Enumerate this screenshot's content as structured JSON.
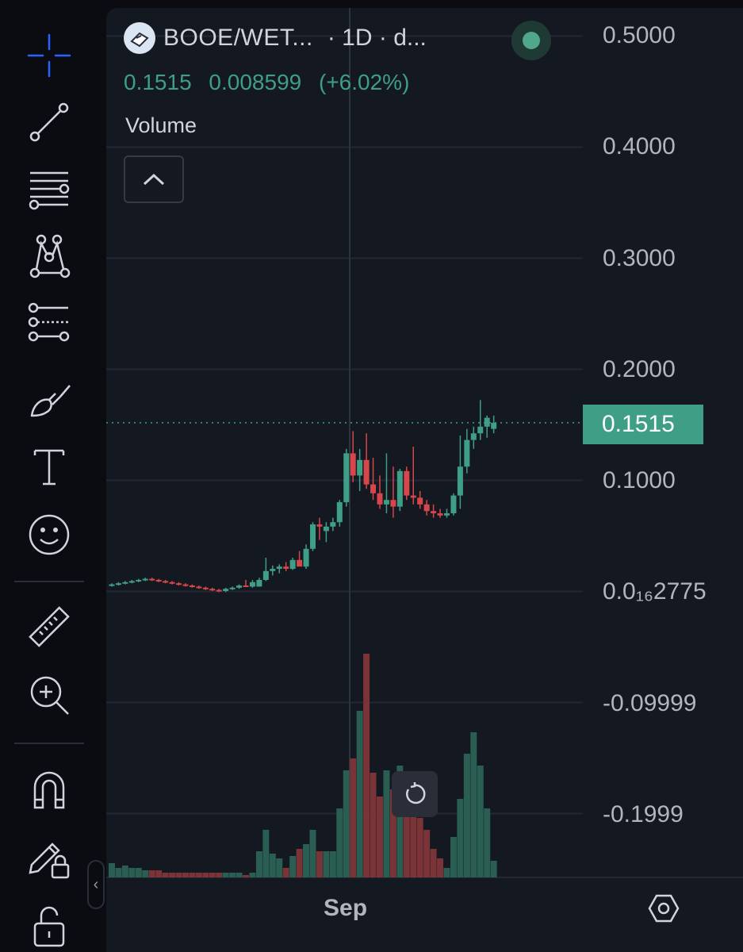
{
  "symbol": {
    "title": "BOOE/WET...",
    "interval": "· 1D · d...",
    "logo_icon": "booe-token-icon",
    "status": "live-green-dot"
  },
  "ohlc": {
    "price": "0.1515",
    "change": "0.008599",
    "change_pct": "(+6.02%)"
  },
  "indicators": {
    "volume_label": "Volume",
    "collapse_icon": "chevron-up-icon"
  },
  "price_axis": {
    "labels": [
      "0.5000",
      "0.4000",
      "0.3000",
      "0.2000",
      "0.1000",
      "0.0₁₆2775",
      "-0.09999",
      "-0.1999"
    ],
    "current_price_tag": "0.1515"
  },
  "time_axis": {
    "labels": [
      "Sep"
    ]
  },
  "toolbar": {
    "tools": [
      "crosshair-icon",
      "trend-line-icon",
      "horizontal-lines-icon",
      "pattern-icon",
      "prediction-icon",
      "brush-icon",
      "text-icon",
      "emoji-icon",
      "ruler-icon",
      "zoom-in-icon",
      "magnet-icon",
      "lock-drawing-icon",
      "unlock-icon"
    ]
  },
  "colors": {
    "up": "#3f9e86",
    "down": "#d6464a",
    "volume_up": "#2a5e52",
    "volume_down": "#7a3336",
    "background": "#141821",
    "grid": "#232733"
  },
  "chart_data": {
    "type": "candlestick",
    "title": "",
    "ylim": [
      -0.25,
      0.52
    ],
    "current_price": 0.1515,
    "x_tick_labels": [
      "Sep"
    ],
    "candles": [
      {
        "o": 0.005,
        "h": 0.007,
        "l": 0.004,
        "c": 0.006,
        "v": 0.06
      },
      {
        "o": 0.006,
        "h": 0.008,
        "l": 0.005,
        "c": 0.007,
        "v": 0.04
      },
      {
        "o": 0.007,
        "h": 0.009,
        "l": 0.006,
        "c": 0.008,
        "v": 0.05
      },
      {
        "o": 0.008,
        "h": 0.01,
        "l": 0.007,
        "c": 0.009,
        "v": 0.04
      },
      {
        "o": 0.009,
        "h": 0.011,
        "l": 0.008,
        "c": 0.01,
        "v": 0.04
      },
      {
        "o": 0.01,
        "h": 0.012,
        "l": 0.009,
        "c": 0.011,
        "v": 0.03
      },
      {
        "o": 0.011,
        "h": 0.012,
        "l": 0.009,
        "c": 0.01,
        "v": 0.03
      },
      {
        "o": 0.01,
        "h": 0.011,
        "l": 0.008,
        "c": 0.009,
        "v": 0.03
      },
      {
        "o": 0.009,
        "h": 0.01,
        "l": 0.007,
        "c": 0.008,
        "v": 0.02
      },
      {
        "o": 0.008,
        "h": 0.009,
        "l": 0.006,
        "c": 0.007,
        "v": 0.02
      },
      {
        "o": 0.007,
        "h": 0.008,
        "l": 0.005,
        "c": 0.006,
        "v": 0.02
      },
      {
        "o": 0.006,
        "h": 0.007,
        "l": 0.004,
        "c": 0.005,
        "v": 0.02
      },
      {
        "o": 0.005,
        "h": 0.006,
        "l": 0.003,
        "c": 0.004,
        "v": 0.02
      },
      {
        "o": 0.004,
        "h": 0.005,
        "l": 0.002,
        "c": 0.003,
        "v": 0.02
      },
      {
        "o": 0.003,
        "h": 0.004,
        "l": 0.001,
        "c": 0.002,
        "v": 0.02
      },
      {
        "o": 0.002,
        "h": 0.003,
        "l": 0.0,
        "c": 0.001,
        "v": 0.02
      },
      {
        "o": 0.001,
        "h": 0.002,
        "l": -0.001,
        "c": 0.0,
        "v": 0.02
      },
      {
        "o": 0.0,
        "h": 0.003,
        "l": -0.001,
        "c": 0.002,
        "v": 0.02
      },
      {
        "o": 0.002,
        "h": 0.004,
        "l": 0.001,
        "c": 0.003,
        "v": 0.02
      },
      {
        "o": 0.003,
        "h": 0.006,
        "l": 0.002,
        "c": 0.005,
        "v": 0.02
      },
      {
        "o": 0.005,
        "h": 0.01,
        "l": 0.004,
        "c": 0.004,
        "v": 0.01
      },
      {
        "o": 0.004,
        "h": 0.01,
        "l": 0.003,
        "c": 0.008,
        "v": 0.02
      },
      {
        "o": 0.004,
        "h": 0.012,
        "l": 0.004,
        "c": 0.01,
        "v": 0.11
      },
      {
        "o": 0.01,
        "h": 0.03,
        "l": 0.009,
        "c": 0.018,
        "v": 0.2
      },
      {
        "o": 0.018,
        "h": 0.023,
        "l": 0.014,
        "c": 0.02,
        "v": 0.1
      },
      {
        "o": 0.02,
        "h": 0.024,
        "l": 0.016,
        "c": 0.022,
        "v": 0.08
      },
      {
        "o": 0.022,
        "h": 0.026,
        "l": 0.018,
        "c": 0.02,
        "v": 0.04
      },
      {
        "o": 0.02,
        "h": 0.03,
        "l": 0.019,
        "c": 0.028,
        "v": 0.09
      },
      {
        "o": 0.028,
        "h": 0.036,
        "l": 0.024,
        "c": 0.022,
        "v": 0.12
      },
      {
        "o": 0.022,
        "h": 0.042,
        "l": 0.02,
        "c": 0.038,
        "v": 0.14
      },
      {
        "o": 0.038,
        "h": 0.062,
        "l": 0.036,
        "c": 0.06,
        "v": 0.2
      },
      {
        "o": 0.06,
        "h": 0.066,
        "l": 0.046,
        "c": 0.058,
        "v": 0.11
      },
      {
        "o": 0.054,
        "h": 0.062,
        "l": 0.044,
        "c": 0.058,
        "v": 0.11
      },
      {
        "o": 0.058,
        "h": 0.066,
        "l": 0.054,
        "c": 0.062,
        "v": 0.11
      },
      {
        "o": 0.062,
        "h": 0.082,
        "l": 0.058,
        "c": 0.08,
        "v": 0.29
      },
      {
        "o": 0.08,
        "h": 0.128,
        "l": 0.076,
        "c": 0.124,
        "v": 0.45
      },
      {
        "o": 0.124,
        "h": 0.144,
        "l": 0.098,
        "c": 0.104,
        "v": 0.5
      },
      {
        "o": 0.104,
        "h": 0.128,
        "l": 0.09,
        "c": 0.118,
        "v": 0.7
      },
      {
        "o": 0.118,
        "h": 0.142,
        "l": 0.092,
        "c": 0.096,
        "v": 0.94
      },
      {
        "o": 0.096,
        "h": 0.12,
        "l": 0.082,
        "c": 0.088,
        "v": 0.44
      },
      {
        "o": 0.088,
        "h": 0.104,
        "l": 0.074,
        "c": 0.078,
        "v": 0.34
      },
      {
        "o": 0.078,
        "h": 0.124,
        "l": 0.07,
        "c": 0.082,
        "v": 0.45
      },
      {
        "o": 0.082,
        "h": 0.112,
        "l": 0.066,
        "c": 0.076,
        "v": 0.37
      },
      {
        "o": 0.076,
        "h": 0.11,
        "l": 0.072,
        "c": 0.108,
        "v": 0.47
      },
      {
        "o": 0.108,
        "h": 0.112,
        "l": 0.082,
        "c": 0.086,
        "v": 0.37
      },
      {
        "o": 0.086,
        "h": 0.13,
        "l": 0.078,
        "c": 0.084,
        "v": 0.31
      },
      {
        "o": 0.084,
        "h": 0.09,
        "l": 0.074,
        "c": 0.078,
        "v": 0.25
      },
      {
        "o": 0.078,
        "h": 0.082,
        "l": 0.068,
        "c": 0.072,
        "v": 0.2
      },
      {
        "o": 0.072,
        "h": 0.078,
        "l": 0.066,
        "c": 0.07,
        "v": 0.12
      },
      {
        "o": 0.07,
        "h": 0.074,
        "l": 0.066,
        "c": 0.068,
        "v": 0.08
      },
      {
        "o": 0.068,
        "h": 0.074,
        "l": 0.066,
        "c": 0.07,
        "v": 0.04
      },
      {
        "o": 0.07,
        "h": 0.088,
        "l": 0.068,
        "c": 0.086,
        "v": 0.17
      },
      {
        "o": 0.086,
        "h": 0.14,
        "l": 0.074,
        "c": 0.112,
        "v": 0.33
      },
      {
        "o": 0.112,
        "h": 0.146,
        "l": 0.106,
        "c": 0.136,
        "v": 0.52
      },
      {
        "o": 0.136,
        "h": 0.148,
        "l": 0.128,
        "c": 0.142,
        "v": 0.61
      },
      {
        "o": 0.142,
        "h": 0.172,
        "l": 0.136,
        "c": 0.148,
        "v": 0.47
      },
      {
        "o": 0.148,
        "h": 0.158,
        "l": 0.138,
        "c": 0.156,
        "v": 0.29
      },
      {
        "o": 0.146,
        "h": 0.158,
        "l": 0.142,
        "c": 0.1515,
        "v": 0.07
      }
    ]
  }
}
